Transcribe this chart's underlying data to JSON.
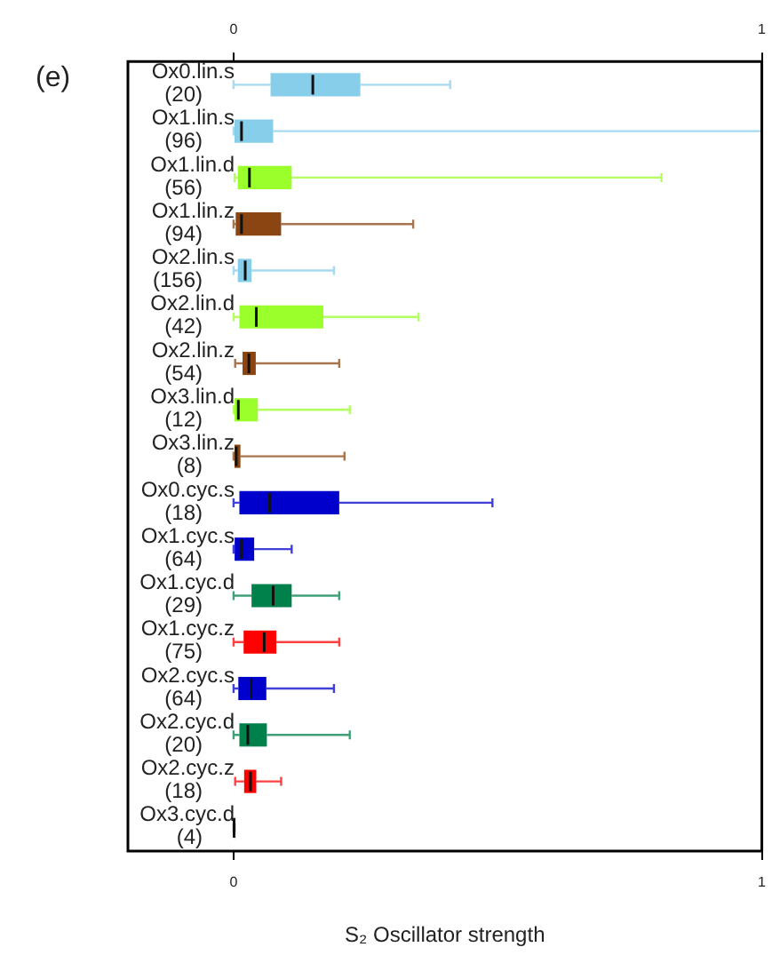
{
  "chart_data": {
    "type": "box",
    "orientation": "horizontal",
    "xlabel": "S₂ Oscillator strength",
    "annotations": [
      "(e)"
    ],
    "categories": [
      "Ox0.lin.s\n(20)",
      "Ox1.lin.s\n(96)",
      "Ox1.lin.d\n(56)",
      "Ox1.lin.z\n(94)",
      "Ox2.lin.s\n(156)",
      "Ox2.lin.d\n(42)",
      "Ox2.lin.z\n(54)",
      "Ox3.lin.d\n(12)",
      "Ox3.lin.z\n(8)",
      "Ox0.cyc.s\n(18)",
      "Ox1.cyc.s\n(64)",
      "Ox1.cyc.d\n(29)",
      "Ox1.cyc.z\n(75)",
      "Ox2.cyc.s\n(64)",
      "Ox2.cyc.d\n(20)",
      "Ox2.cyc.z\n(18)",
      "Ox3.cyc.d\n(4)"
    ],
    "colors": [
      "#87ceeb",
      "#87ceeb",
      "#9aff2a",
      "#8b4513",
      "#87ceeb",
      "#9aff2a",
      "#8b4513",
      "#9aff2a",
      "#8b4513",
      "#0000cd",
      "#0000cd",
      "#00804a",
      "#ff0000",
      "#0000cd",
      "#00804a",
      "#ff0000",
      "#00804a"
    ],
    "boxes": [
      {
        "low": 0,
        "q1": 0.07,
        "median": 0.15,
        "q3": 0.24,
        "high": 0.41
      },
      {
        "low": 0,
        "q1": 0,
        "median": 0.015,
        "q3": 0.075,
        "high": 1
      },
      {
        "low": 0.002,
        "q1": 0.008,
        "median": 0.03,
        "q3": 0.11,
        "high": 0.81
      },
      {
        "low": 0,
        "q1": 0.004,
        "median": 0.015,
        "q3": 0.09,
        "high": 0.34
      },
      {
        "low": 0,
        "q1": 0.008,
        "median": 0.022,
        "q3": 0.034,
        "high": 0.19
      },
      {
        "low": 0,
        "q1": 0.011,
        "median": 0.043,
        "q3": 0.17,
        "high": 0.35
      },
      {
        "low": 0.003,
        "q1": 0.017,
        "median": 0.029,
        "q3": 0.042,
        "high": 0.2
      },
      {
        "low": 0,
        "q1": 0,
        "median": 0.009,
        "q3": 0.046,
        "high": 0.22
      },
      {
        "low": 0,
        "q1": 0,
        "median": 0.005,
        "q3": 0.013,
        "high": 0.21
      },
      {
        "low": 0,
        "q1": 0.011,
        "median": 0.068,
        "q3": 0.2,
        "high": 0.49
      },
      {
        "low": 0,
        "q1": 0.002,
        "median": 0.015,
        "q3": 0.039,
        "high": 0.11
      },
      {
        "low": 0,
        "q1": 0.034,
        "median": 0.075,
        "q3": 0.11,
        "high": 0.2
      },
      {
        "low": 0,
        "q1": 0.019,
        "median": 0.058,
        "q3": 0.081,
        "high": 0.2
      },
      {
        "low": 0,
        "q1": 0.009,
        "median": 0.033,
        "q3": 0.062,
        "high": 0.19
      },
      {
        "low": 0,
        "q1": 0.011,
        "median": 0.027,
        "q3": 0.063,
        "high": 0.22
      },
      {
        "low": 0.003,
        "q1": 0.02,
        "median": 0.032,
        "q3": 0.043,
        "high": 0.09
      },
      {
        "low": 0,
        "q1": 0,
        "median": 0.001,
        "q3": 0.002,
        "high": 0.002
      }
    ],
    "xlim": [
      -0.2,
      1
    ],
    "xticks": [
      0,
      1
    ],
    "x2lim": [
      -0.2,
      1
    ],
    "x2ticks": [
      0,
      1
    ],
    "grid": false,
    "legend": false
  }
}
